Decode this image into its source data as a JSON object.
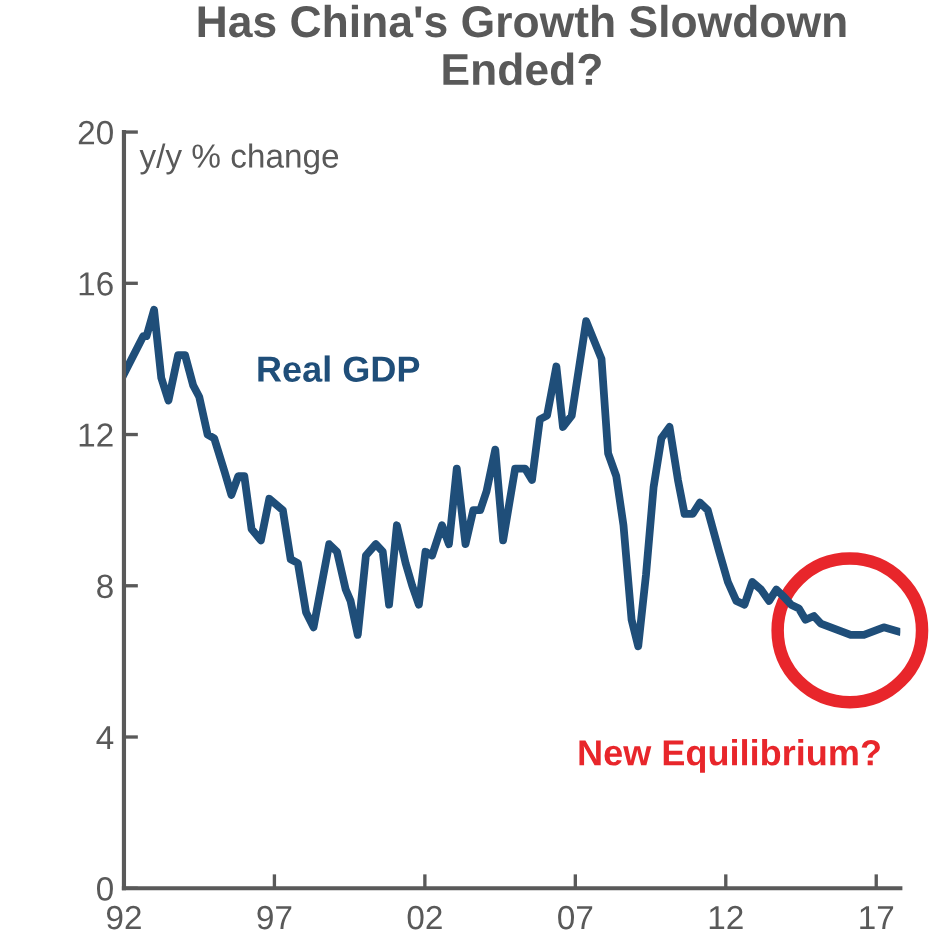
{
  "chart_data": {
    "type": "line",
    "title": "Has China's Growth Slowdown Ended?",
    "ylabel": "y/y % change",
    "annotations": [
      "New Equilibrium?"
    ],
    "series": [
      {
        "name": "Real GDP",
        "color": "#1f4e79",
        "x": [
          1992.0,
          1992.64,
          1992.75,
          1993.0,
          1993.24,
          1993.48,
          1993.8,
          1994.03,
          1994.3,
          1994.5,
          1994.78,
          1995.0,
          1995.35,
          1995.57,
          1995.8,
          1996.0,
          1996.24,
          1996.55,
          1996.83,
          1997.28,
          1997.54,
          1997.78,
          1998.05,
          1998.3,
          1998.82,
          1999.08,
          1999.37,
          1999.53,
          1999.77,
          2000.04,
          2000.37,
          2000.6,
          2000.81,
          2001.07,
          2001.36,
          2001.58,
          2001.8,
          2002.02,
          2002.24,
          2002.57,
          2002.8,
          2003.06,
          2003.35,
          2003.61,
          2003.84,
          2004.05,
          2004.34,
          2004.6,
          2005.0,
          2005.33,
          2005.56,
          2005.82,
          2006.06,
          2006.37,
          2006.59,
          2006.88,
          2007.36,
          2007.87,
          2008.09,
          2008.36,
          2008.6,
          2008.87,
          2009.09,
          2009.35,
          2009.6,
          2009.86,
          2010.13,
          2010.41,
          2010.63,
          2010.9,
          2011.14,
          2011.4,
          2011.78,
          2012.07,
          2012.35,
          2012.62,
          2012.88,
          2013.17,
          2013.44,
          2013.68,
          2013.94,
          2014.17,
          2014.43,
          2014.65,
          2014.93,
          2015.16,
          2015.49,
          2015.82,
          2016.15,
          2016.59,
          2016.92,
          2017.25,
          2017.7
        ],
        "values": [
          13.6,
          14.6,
          14.6,
          15.3,
          13.5,
          12.9,
          14.1,
          14.1,
          13.3,
          13.0,
          12.0,
          11.9,
          11.0,
          10.4,
          10.9,
          10.9,
          9.5,
          9.2,
          10.3,
          10.0,
          8.7,
          8.6,
          7.3,
          6.9,
          9.1,
          8.9,
          7.9,
          7.6,
          6.7,
          8.8,
          9.1,
          8.9,
          7.5,
          9.6,
          8.6,
          8.0,
          7.5,
          8.9,
          8.8,
          9.6,
          9.1,
          11.1,
          9.1,
          10.0,
          10.0,
          10.5,
          11.6,
          9.2,
          11.1,
          11.1,
          10.8,
          12.4,
          12.5,
          13.8,
          12.2,
          12.5,
          15.0,
          14.0,
          11.5,
          10.9,
          9.6,
          7.1,
          6.4,
          8.3,
          10.6,
          11.9,
          12.2,
          10.8,
          9.9,
          9.9,
          10.2,
          10.0,
          8.9,
          8.1,
          7.6,
          7.5,
          8.1,
          7.9,
          7.6,
          7.9,
          7.7,
          7.5,
          7.4,
          7.1,
          7.2,
          7.0,
          6.9,
          6.8,
          6.7,
          6.7,
          6.8,
          6.9,
          6.8
        ]
      }
    ],
    "xlim": [
      1992,
      2017.8
    ],
    "xticks": [
      {
        "value": 1992,
        "label": "92"
      },
      {
        "value": 1997,
        "label": "97"
      },
      {
        "value": 2002,
        "label": "02"
      },
      {
        "value": 2007,
        "label": "07"
      },
      {
        "value": 2012,
        "label": "12"
      },
      {
        "value": 2017,
        "label": "17"
      }
    ],
    "ylim": [
      0,
      20
    ],
    "yticks": [
      0,
      4,
      8,
      12,
      16,
      20
    ],
    "grid": false,
    "legend": false,
    "marker": "none",
    "line_style": "solid"
  }
}
